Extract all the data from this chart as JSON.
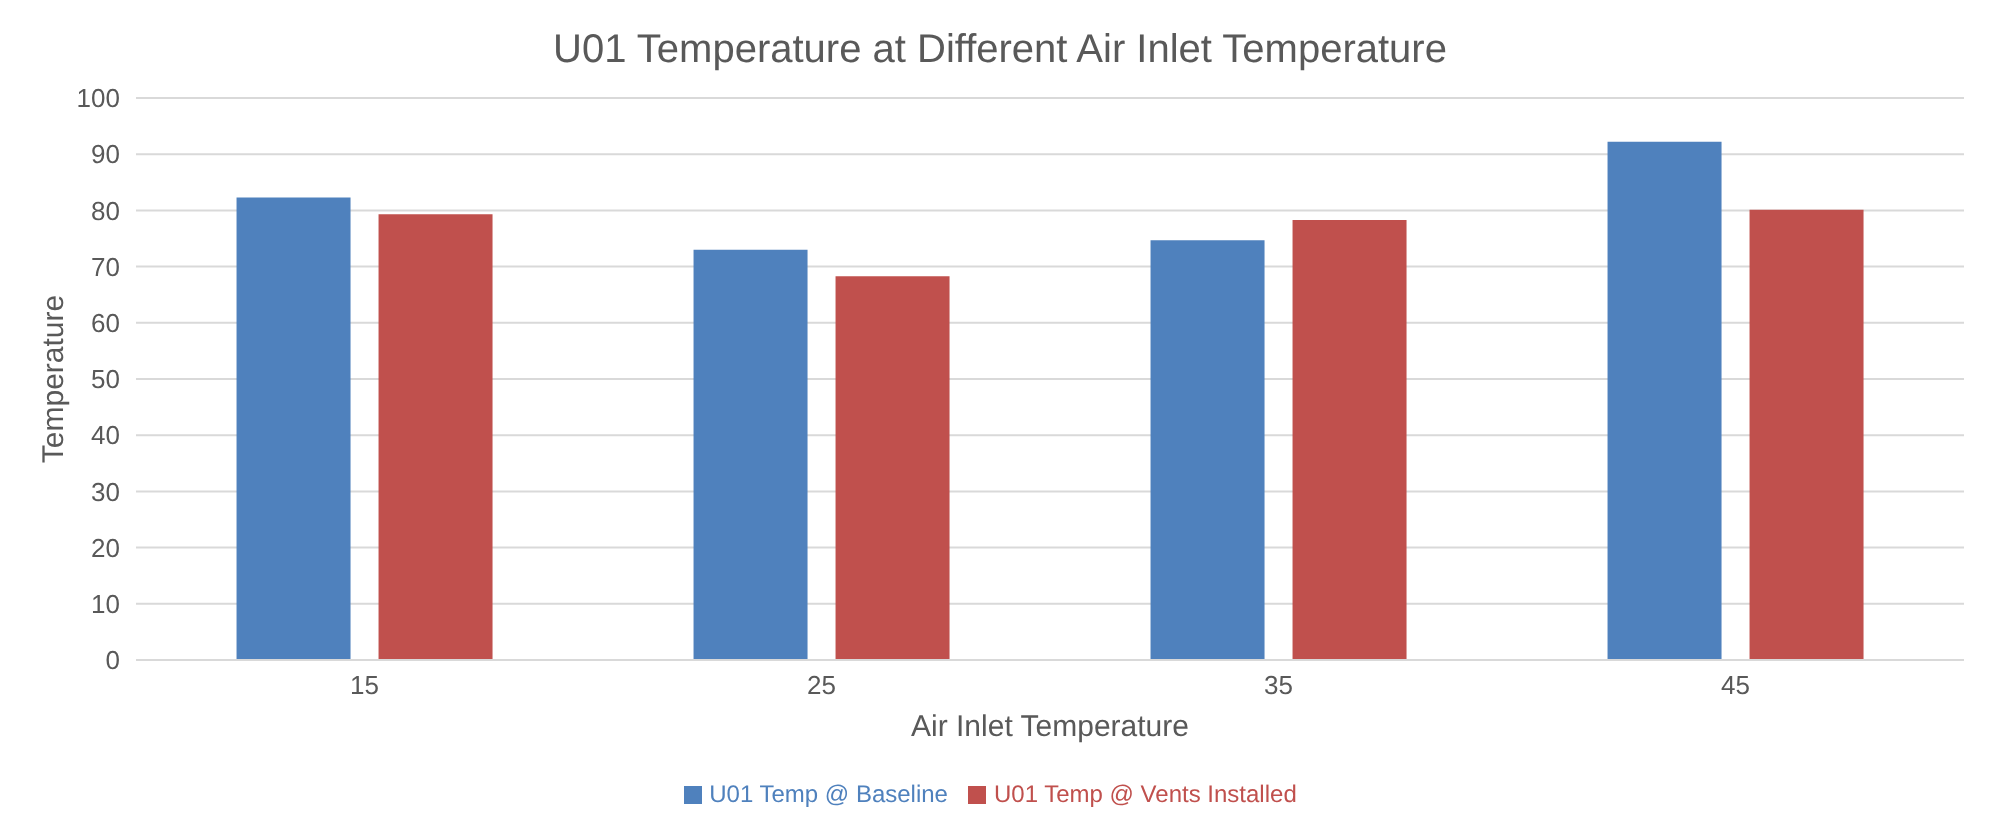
{
  "chart_data": {
    "type": "bar",
    "title": "U01 Temperature at Different Air Inlet Temperature",
    "xlabel": "Air Inlet Temperature",
    "ylabel": "Temperature",
    "categories": [
      "15",
      "25",
      "35",
      "45"
    ],
    "series": [
      {
        "name": "U01 Temp @ Baseline",
        "color": "#4f81bd",
        "values": [
          82.3,
          73.0,
          74.7,
          92.2
        ]
      },
      {
        "name": "U01 Temp @ Vents Installed",
        "color": "#c0504d",
        "values": [
          79.3,
          68.3,
          78.3,
          80.1
        ]
      }
    ],
    "ylim": [
      0,
      100
    ],
    "yticks": [
      0,
      10,
      20,
      30,
      40,
      50,
      60,
      70,
      80,
      90,
      100
    ],
    "grid": "y",
    "legend": "bottom"
  }
}
